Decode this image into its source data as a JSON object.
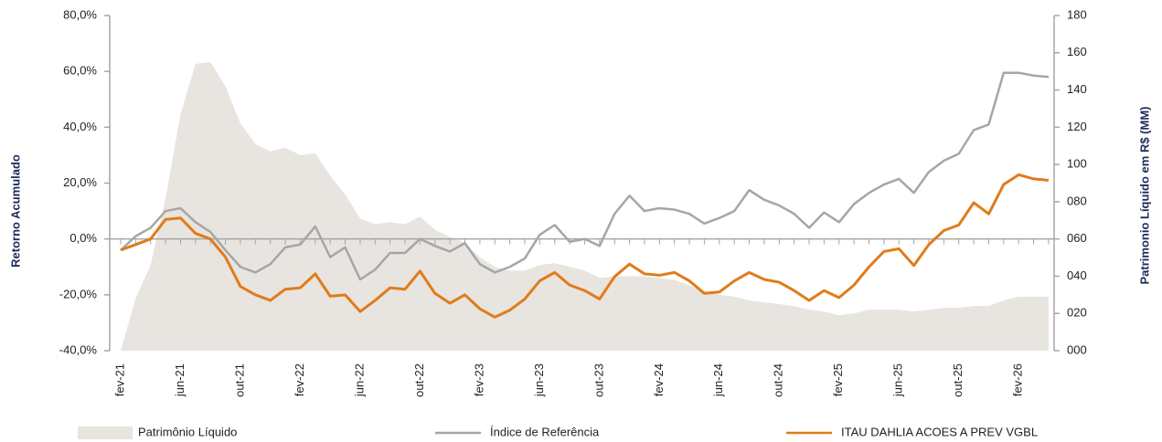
{
  "chart_data": {
    "type": "combo",
    "y_label": "Retorno Acumulado",
    "y2_label": "Patrimonio Líquido em R$ (MM)",
    "categories": [
      "fev-21",
      null,
      null,
      null,
      "jun-21",
      null,
      null,
      null,
      "out-21",
      null,
      null,
      null,
      "fev-22",
      null,
      null,
      null,
      "jun-22",
      null,
      null,
      null,
      "out-22",
      null,
      null,
      null,
      "fev-23",
      null,
      null,
      null,
      "jun-23",
      null,
      null,
      null,
      "out-23",
      null,
      null,
      null,
      "fev-24",
      null,
      null,
      null,
      "jun-24",
      null,
      null,
      null,
      "out-24",
      null,
      null,
      null,
      "fev-25",
      null,
      null,
      null,
      "jun-25",
      null,
      null,
      null,
      "out-25",
      null,
      null,
      null,
      "fev-26",
      null,
      null
    ],
    "ylim": [
      -40,
      80
    ],
    "yticks": [
      {
        "value": -40,
        "label": "-40,0%"
      },
      {
        "value": -20,
        "label": "-20,0%"
      },
      {
        "value": 0,
        "label": "0,0%"
      },
      {
        "value": 20,
        "label": "20,0%"
      },
      {
        "value": 40,
        "label": "40,0%"
      },
      {
        "value": 60,
        "label": "60,0%"
      },
      {
        "value": 80,
        "label": "80,0%"
      }
    ],
    "y2lim": [
      0,
      180
    ],
    "y2ticks": [
      {
        "value": 0,
        "label": "000"
      },
      {
        "value": 20,
        "label": "020"
      },
      {
        "value": 40,
        "label": "040"
      },
      {
        "value": 60,
        "label": "060"
      },
      {
        "value": 80,
        "label": "080"
      },
      100,
      120,
      140,
      160,
      180
    ],
    "series": [
      {
        "name": "Patrimônio Líquido",
        "type": "area",
        "axis": "y2",
        "color": "#e8e4df",
        "values": [
          0,
          28,
          46,
          82,
          127,
          154,
          155,
          142,
          122,
          111,
          107,
          109,
          105,
          106,
          94,
          84,
          71,
          68,
          69,
          68,
          72,
          65,
          61,
          58,
          50,
          45,
          43,
          43,
          46,
          47,
          45,
          43,
          39,
          40,
          40,
          40,
          39,
          38,
          35,
          32,
          30,
          29,
          27,
          26,
          25,
          24,
          22,
          21,
          19,
          20,
          22,
          22,
          22,
          21,
          22,
          23,
          23,
          24,
          24,
          27,
          29,
          29,
          29
        ]
      },
      {
        "name": "Índice de Referência",
        "type": "line",
        "color": "#a6a6a6",
        "values": [
          -4,
          1,
          4,
          10,
          11,
          6,
          2.5,
          -4,
          -10,
          -12,
          -9,
          -3,
          -2,
          4.5,
          -6.5,
          -3,
          -14.5,
          -11,
          -5,
          -5,
          0,
          -2.5,
          -4.5,
          -1.5,
          -9,
          -12,
          -10,
          -7,
          1.5,
          5,
          -1,
          0,
          -2.5,
          9,
          15.5,
          10,
          11,
          10.5,
          9,
          5.5,
          7.5,
          10,
          17.5,
          14,
          12,
          9,
          4,
          9.5,
          6,
          12.5,
          16.5,
          19.5,
          21.5,
          16.5,
          24,
          28,
          30.5,
          39,
          41,
          59.5,
          59.5,
          58.5,
          58
        ]
      },
      {
        "name": "ITAU DAHLIA ACOES A PREV VGBL",
        "type": "line",
        "color": "#e07b1a",
        "values": [
          -4,
          -2,
          0,
          7,
          7.5,
          2,
          0,
          -6.5,
          -17,
          -20,
          -22,
          -18,
          -17.5,
          -12.5,
          -20.5,
          -20,
          -26,
          -22,
          -17.5,
          -18,
          -11.5,
          -19.5,
          -23,
          -20,
          -25,
          -28,
          -25.5,
          -21.5,
          -15,
          -12,
          -16.5,
          -18.5,
          -21.5,
          -13.5,
          -9,
          -12.5,
          -13,
          -12,
          -15,
          -19.5,
          -19,
          -15,
          -12,
          -14.5,
          -15.5,
          -18.5,
          -22,
          -18.5,
          -21,
          -16.5,
          -10,
          -4.5,
          -3.5,
          -9.5,
          -2,
          3,
          5,
          13,
          9,
          19.5,
          23,
          21.5,
          21
        ]
      }
    ]
  }
}
